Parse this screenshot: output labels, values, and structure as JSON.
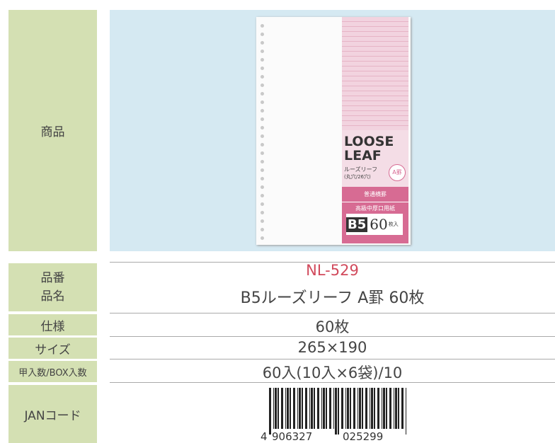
{
  "product": {
    "label": "商品",
    "package": {
      "title_line1": "LOOSE",
      "title_line2": "LEAF",
      "subtitle": "ルーズリーフ",
      "holes": "(丸穴/26穴)",
      "rule": "A罫",
      "rule_type": "普通横罫",
      "paper": "高級中厚口用紙",
      "size": "B5",
      "count": "60",
      "count_unit": "枚入"
    }
  },
  "specs": [
    {
      "label": "品番",
      "value": "NL-529"
    },
    {
      "label": "品名",
      "value": "B5ルーズリーフ A罫 60枚"
    },
    {
      "label": "仕様",
      "value": "60枚"
    },
    {
      "label": "サイズ",
      "value": "265×190"
    },
    {
      "label": "甲入数/BOX入数",
      "value": "60入(10入×6袋)/10"
    }
  ],
  "jan": {
    "label": "JANコード",
    "digits": [
      "4",
      "906327",
      "025299"
    ]
  }
}
